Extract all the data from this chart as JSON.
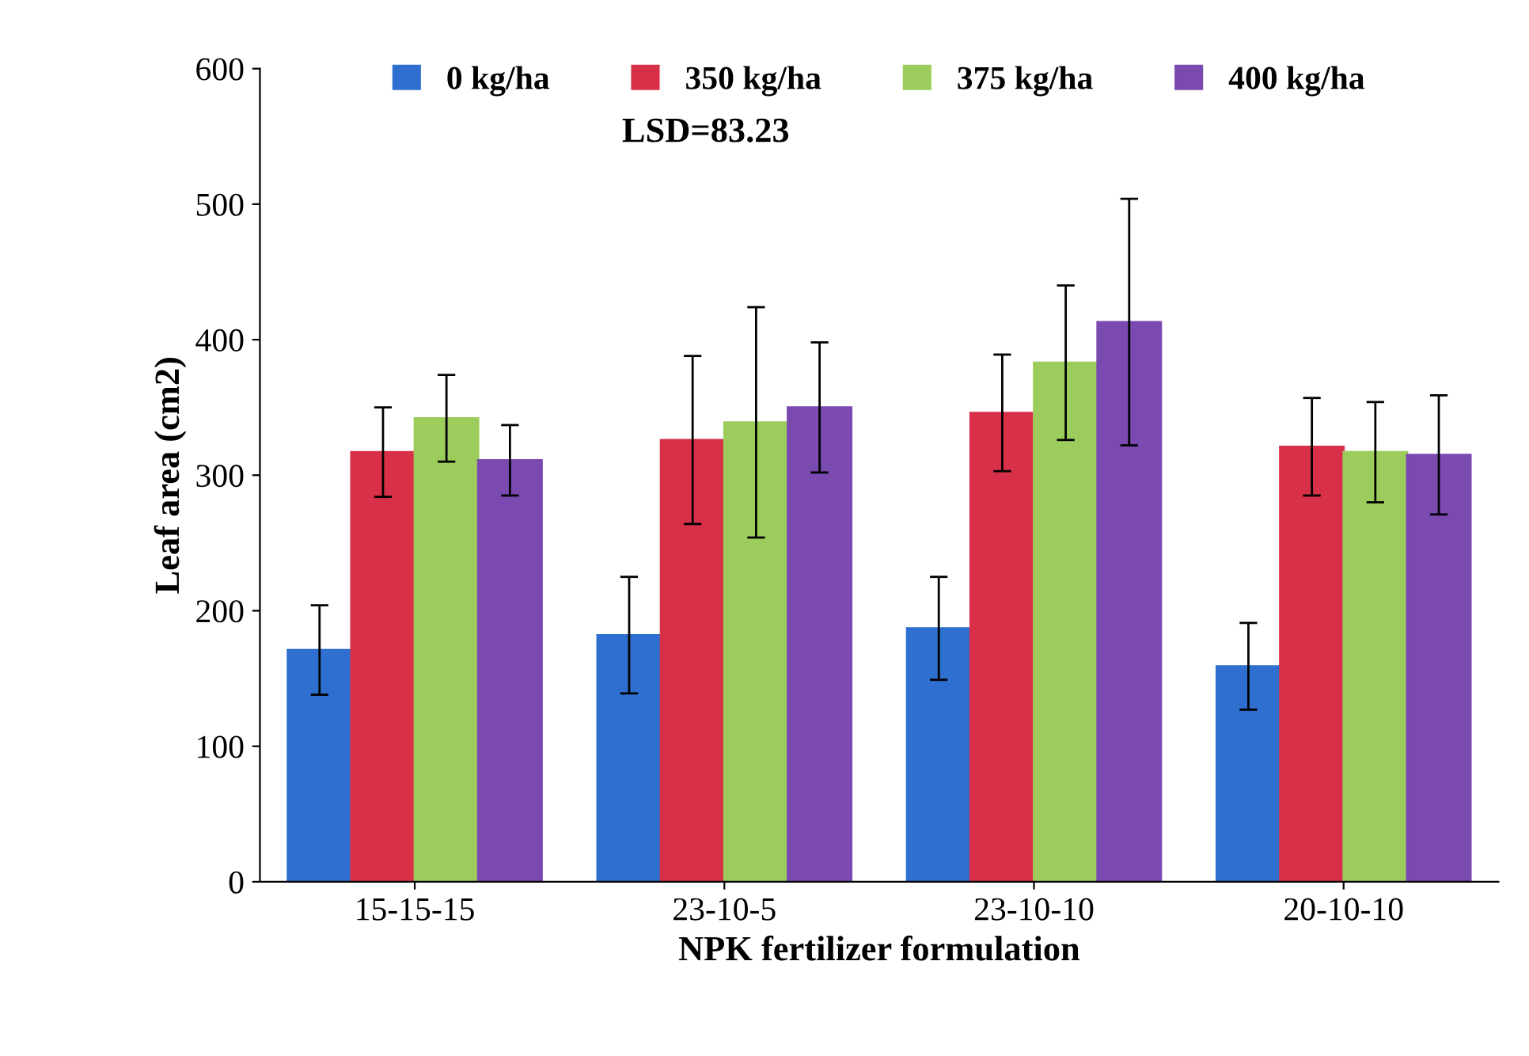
{
  "chart_data": {
    "type": "bar",
    "xlabel": "NPK fertilizer formulation",
    "ylabel": "Leaf area (cm2)",
    "categories": [
      "15-15-15",
      "23-10-5",
      "23-10-10",
      "20-10-10"
    ],
    "series": [
      {
        "name": "0 kg/ha",
        "color": "#2e6fd0",
        "values": [
          171,
          182,
          187,
          159
        ],
        "errors": [
          33,
          43,
          38,
          32
        ]
      },
      {
        "name": "350 kg/ha",
        "color": "#d9304a",
        "values": [
          317,
          326,
          346,
          321
        ],
        "errors": [
          33,
          62,
          43,
          36
        ]
      },
      {
        "name": "375 kg/ha",
        "color": "#9ccc5c",
        "values": [
          342,
          339,
          383,
          317
        ],
        "errors": [
          32,
          85,
          57,
          37
        ]
      },
      {
        "name": "400 kg/ha",
        "color": "#7a4ab0",
        "values": [
          311,
          350,
          413,
          315
        ],
        "errors": [
          26,
          48,
          91,
          44
        ]
      }
    ],
    "ylim": [
      0,
      600
    ],
    "yticks": [
      0,
      100,
      200,
      300,
      400,
      500,
      600
    ],
    "annotations": [
      "LSD=83.23"
    ],
    "legend": "top",
    "grid": false
  }
}
